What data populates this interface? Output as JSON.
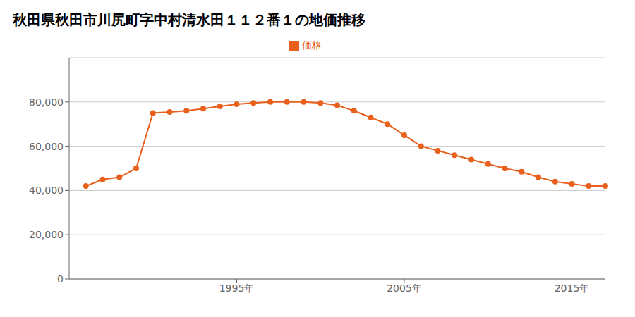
{
  "chart_data": {
    "type": "line",
    "title": "秋田県秋田市川尻町字中村清水田１１２番１の地価推移",
    "x": [
      1986,
      1987,
      1988,
      1989,
      1990,
      1991,
      1992,
      1993,
      1994,
      1995,
      1996,
      1997,
      1998,
      1999,
      2000,
      2001,
      2002,
      2003,
      2004,
      2005,
      2006,
      2007,
      2008,
      2009,
      2010,
      2011,
      2012,
      2013,
      2014,
      2015,
      2016,
      2017
    ],
    "series": [
      {
        "name": "価格",
        "color": "#E8601C",
        "values": [
          42000,
          45000,
          46000,
          50000,
          75000,
          75500,
          76000,
          77000,
          78000,
          79000,
          79500,
          80000,
          80000,
          80000,
          79500,
          78500,
          76000,
          73000,
          70000,
          65000,
          60000,
          58000,
          56000,
          54000,
          52000,
          50000,
          48500,
          46000,
          44000,
          43000,
          42000,
          42000
        ]
      }
    ],
    "xlim": [
      1985,
      2017
    ],
    "xticks": [
      {
        "value": 1995,
        "label": "1995年"
      },
      {
        "value": 2005,
        "label": "2005年"
      },
      {
        "value": 2015,
        "label": "2015年"
      }
    ],
    "ylim": [
      0,
      100000
    ],
    "yticks": [
      0,
      {
        "value": 20000,
        "label": "20,000"
      },
      {
        "value": 40000,
        "label": "40,000"
      },
      {
        "value": 60000,
        "label": "60,000"
      },
      {
        "value": 80000,
        "label": "80,000"
      }
    ],
    "grid": true,
    "legend": "top",
    "marker": "circle"
  }
}
